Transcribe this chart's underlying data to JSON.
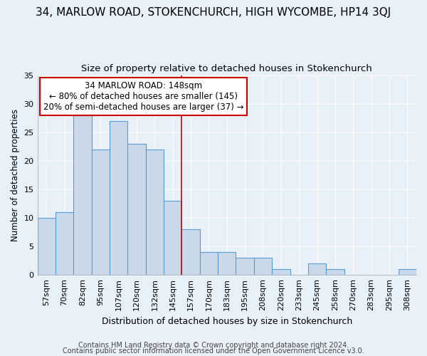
{
  "title": "34, MARLOW ROAD, STOKENCHURCH, HIGH WYCOMBE, HP14 3QJ",
  "subtitle": "Size of property relative to detached houses in Stokenchurch",
  "xlabel": "Distribution of detached houses by size in Stokenchurch",
  "ylabel": "Number of detached properties",
  "categories": [
    "57sqm",
    "70sqm",
    "82sqm",
    "95sqm",
    "107sqm",
    "120sqm",
    "132sqm",
    "145sqm",
    "157sqm",
    "170sqm",
    "183sqm",
    "195sqm",
    "208sqm",
    "220sqm",
    "233sqm",
    "245sqm",
    "258sqm",
    "270sqm",
    "283sqm",
    "295sqm",
    "308sqm"
  ],
  "values": [
    10,
    11,
    28,
    22,
    27,
    23,
    22,
    13,
    8,
    4,
    4,
    3,
    3,
    1,
    0,
    2,
    1,
    0,
    0,
    0,
    1
  ],
  "bar_color": "#c9d9ea",
  "bar_edge_color": "#5b9bd5",
  "highlight_index": 7,
  "property_size": "148sqm",
  "annotation_line1": "34 MARLOW ROAD: 148sqm",
  "annotation_line2": "← 80% of detached houses are smaller (145)",
  "annotation_line3": "20% of semi-detached houses are larger (37) →",
  "annotation_box_color": "#ffffff",
  "annotation_box_edge_color": "#cc0000",
  "vline_color": "#cc0000",
  "ylim": [
    0,
    35
  ],
  "yticks": [
    0,
    5,
    10,
    15,
    20,
    25,
    30,
    35
  ],
  "footer1": "Contains HM Land Registry data © Crown copyright and database right 2024.",
  "footer2": "Contains public sector information licensed under the Open Government Licence v3.0.",
  "background_color": "#e8f0f8",
  "plot_background_color": "#e8f0f8",
  "grid_color": "#ffffff",
  "title_fontsize": 11,
  "subtitle_fontsize": 9.5,
  "xlabel_fontsize": 9,
  "ylabel_fontsize": 8.5,
  "tick_fontsize": 8,
  "annotation_fontsize": 8.5,
  "footer_fontsize": 7
}
